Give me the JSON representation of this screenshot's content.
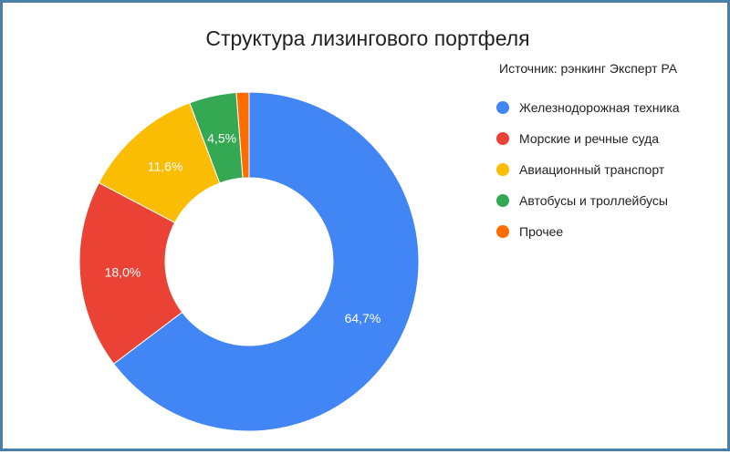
{
  "chart_data": {
    "type": "pie",
    "title": "Структура лизингового портфеля",
    "source_note": "Источник: рэнкинг Эксперт РА",
    "legend_position": "right",
    "slices": [
      {
        "name": "Железнодорожная техника",
        "value": 64.7,
        "label": "64,7%",
        "color": "#4285f4"
      },
      {
        "name": "Морские и речные суда",
        "value": 18.0,
        "label": "18,0%",
        "color": "#ea4335"
      },
      {
        "name": "Авиационный транспорт",
        "value": 11.6,
        "label": "11,6%",
        "color": "#fbbc04"
      },
      {
        "name": "Автобусы и троллейбусы",
        "value": 4.5,
        "label": "4,5%",
        "color": "#34a853"
      },
      {
        "name": "Прочее",
        "value": 1.2,
        "label": "",
        "color": "#ff6d01"
      }
    ]
  }
}
